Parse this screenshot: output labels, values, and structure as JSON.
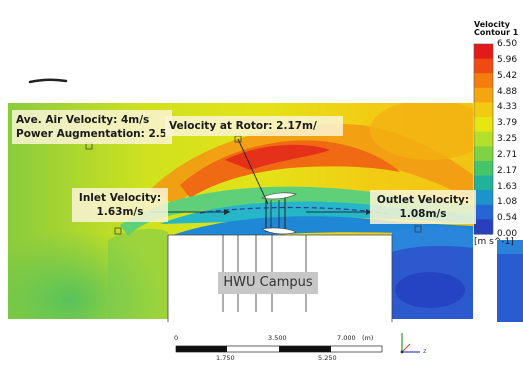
{
  "callouts": {
    "ave_air_velocity": "Ave. Air Velocity: 4m/s",
    "power_augmentation": "Power Augmentation: 2.5",
    "rotor_velocity": "Velocity at Rotor: 2.17m/",
    "inlet_label": "Inlet Velocity:",
    "inlet_value": "1.63m/s",
    "outlet_label": "Outlet Velocity:",
    "outlet_value": "1.08m/s"
  },
  "building": {
    "label": "HWU Campus"
  },
  "legend": {
    "title_line1": "Velocity",
    "title_line2": "Contour 1",
    "ticks": [
      "6.50",
      "5.96",
      "5.42",
      "4.88",
      "4.33",
      "3.79",
      "3.25",
      "2.71",
      "2.17",
      "1.63",
      "1.08",
      "0.54",
      "0.00"
    ],
    "units": "[m s^-1]",
    "colors": [
      "#e21a1a",
      "#f04a12",
      "#f57d10",
      "#f5a50f",
      "#f2cb10",
      "#e8e612",
      "#b5e02a",
      "#7fd343",
      "#46c46a",
      "#21b29a",
      "#1d93cc",
      "#2466d6",
      "#2a3fc0"
    ]
  },
  "scale_bar": {
    "labels_top": [
      "0",
      "3.500",
      "7.000"
    ],
    "unit": "(m)",
    "labels_bottom": [
      "1.750",
      "5.250"
    ]
  },
  "axis_triad": {
    "z_label": "z"
  }
}
